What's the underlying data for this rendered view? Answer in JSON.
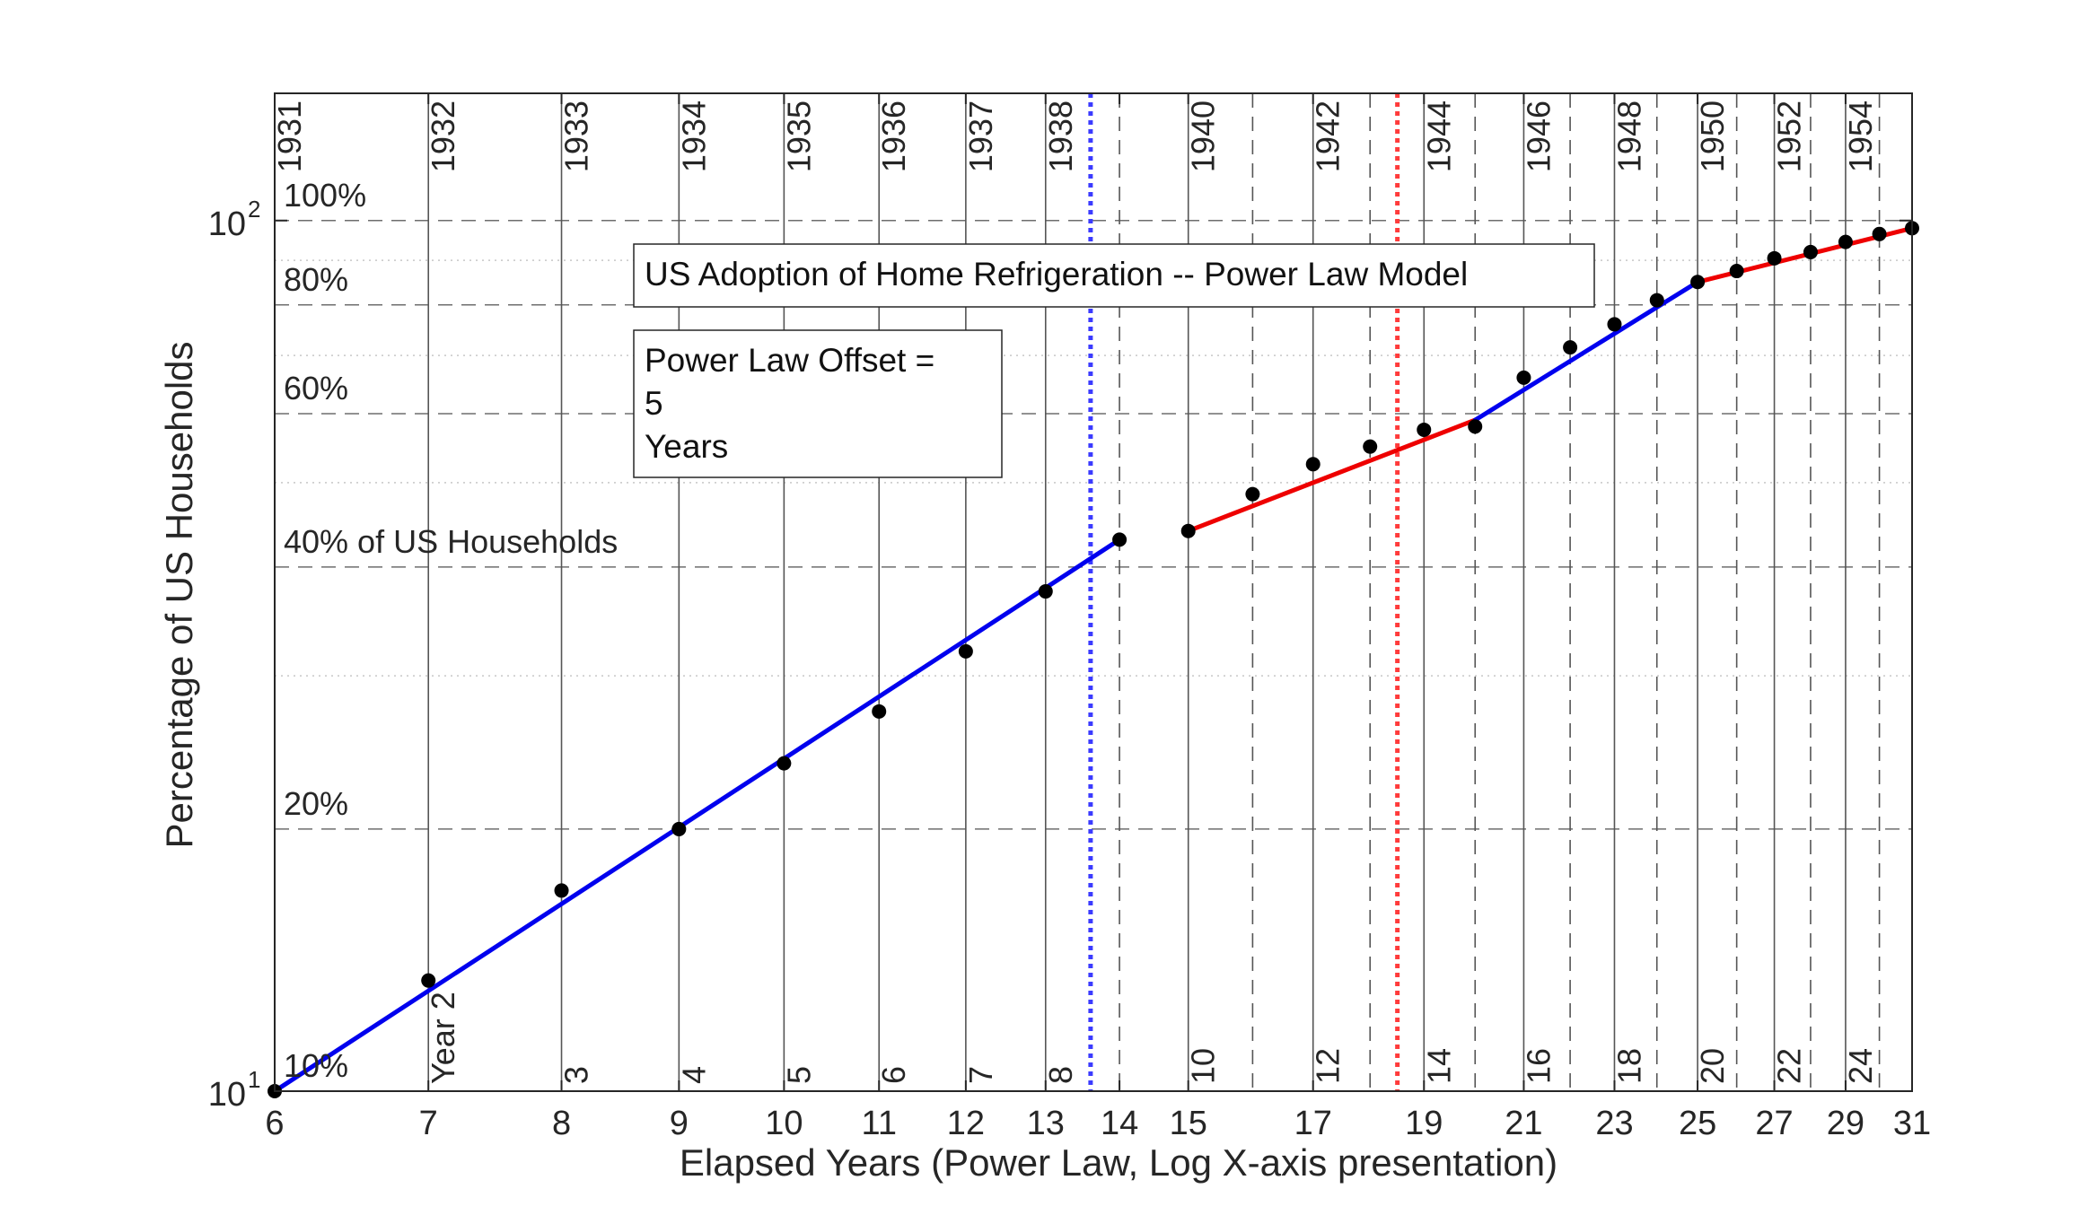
{
  "chart_data": {
    "type": "line",
    "title": "US Adoption of Home Refrigeration -- Power Law Model",
    "xlabel": "Elapsed Years (Power Law, Log X-axis presentation)",
    "ylabel": "Percentage of US Households",
    "x_scale": "log",
    "y_scale": "log",
    "xlim": [
      6,
      31
    ],
    "ylim": [
      10,
      140
    ],
    "x_ticks": [
      6,
      7,
      8,
      9,
      10,
      11,
      12,
      13,
      14,
      15,
      17,
      19,
      21,
      23,
      25,
      27,
      29,
      31
    ],
    "y_ticks": [
      {
        "value": 10,
        "base": "10",
        "exp": "1"
      },
      {
        "value": 100,
        "base": "10",
        "exp": "2"
      }
    ],
    "top_labels": [
      {
        "x": 6,
        "label": "1931"
      },
      {
        "x": 7,
        "label": "1932"
      },
      {
        "x": 8,
        "label": "1933"
      },
      {
        "x": 9,
        "label": "1934"
      },
      {
        "x": 10,
        "label": "1935"
      },
      {
        "x": 11,
        "label": "1936"
      },
      {
        "x": 12,
        "label": "1937"
      },
      {
        "x": 13,
        "label": "1938"
      },
      {
        "x": 15,
        "label": "1940"
      },
      {
        "x": 17,
        "label": "1942"
      },
      {
        "x": 19,
        "label": "1944"
      },
      {
        "x": 21,
        "label": "1946"
      },
      {
        "x": 23,
        "label": "1948"
      },
      {
        "x": 25,
        "label": "1950"
      },
      {
        "x": 27,
        "label": "1952"
      },
      {
        "x": 29,
        "label": "1954"
      }
    ],
    "bottom_labels": [
      {
        "x": 7,
        "label": "Year 2"
      },
      {
        "x": 8,
        "label": "3"
      },
      {
        "x": 9,
        "label": "4"
      },
      {
        "x": 10,
        "label": "5"
      },
      {
        "x": 11,
        "label": "6"
      },
      {
        "x": 12,
        "label": "7"
      },
      {
        "x": 13,
        "label": "8"
      },
      {
        "x": 15,
        "label": "10"
      },
      {
        "x": 17,
        "label": "12"
      },
      {
        "x": 19,
        "label": "14"
      },
      {
        "x": 21,
        "label": "16"
      },
      {
        "x": 23,
        "label": "18"
      },
      {
        "x": 25,
        "label": "20"
      },
      {
        "x": 27,
        "label": "22"
      },
      {
        "x": 29,
        "label": "24"
      }
    ],
    "pct_labels": [
      {
        "y": 10,
        "label": "10%"
      },
      {
        "y": 20,
        "label": "20%"
      },
      {
        "y": 40,
        "label": "40% of US Households"
      },
      {
        "y": 60,
        "label": "60%"
      },
      {
        "y": 80,
        "label": "80%"
      },
      {
        "y": 100,
        "label": "100%"
      }
    ],
    "hlines_dashed": [
      20,
      40,
      60,
      80,
      100
    ],
    "hlines_fine": [
      30,
      50,
      70,
      90
    ],
    "vlines_solid": [
      6,
      7,
      8,
      9,
      10,
      11,
      12,
      13,
      15,
      17,
      19,
      21,
      23,
      25,
      27,
      29
    ],
    "vlines_dashed": [
      14,
      16,
      18,
      20,
      22,
      24,
      26,
      28,
      30
    ],
    "markers": [
      {
        "x": 13.6,
        "color": "#3b3bff"
      },
      {
        "x": 18.5,
        "color": "#ff3b3b"
      }
    ],
    "series": [
      {
        "name": "",
        "kind": "points",
        "color": "#000000",
        "x": [
          6,
          7,
          8,
          9,
          10,
          11,
          12,
          13,
          14,
          15,
          16,
          17,
          18,
          19,
          20,
          21,
          22,
          23,
          24,
          25,
          26,
          27,
          28,
          29,
          30,
          31
        ],
        "y": [
          10,
          13.4,
          17.0,
          20.0,
          23.8,
          27.3,
          32.0,
          37.5,
          43.0,
          44.0,
          48.5,
          52.5,
          55.0,
          57.5,
          58.0,
          66.0,
          71.5,
          76.0,
          81.0,
          85.0,
          87.5,
          90.5,
          92.0,
          94.5,
          96.5,
          98.0
        ]
      },
      {
        "name": "",
        "kind": "line",
        "color": "#0000ee",
        "x": [
          6,
          14
        ],
        "y": [
          10,
          43.0
        ]
      },
      {
        "name": "",
        "kind": "line",
        "color": "#ee0000",
        "x": [
          15,
          20
        ],
        "y": [
          44.0,
          59.0
        ]
      },
      {
        "name": "",
        "kind": "line",
        "color": "#0000ee",
        "x": [
          20,
          25
        ],
        "y": [
          59.0,
          85.0
        ]
      },
      {
        "name": "",
        "kind": "line",
        "color": "#ee0000",
        "x": [
          25,
          31
        ],
        "y": [
          85.0,
          98.0
        ]
      }
    ],
    "annotations": {
      "title_box": "US Adoption of Home Refrigeration -- Power Law Model",
      "offset_lines": [
        "Power Law Offset =",
        "5",
        "Years"
      ]
    },
    "grid": true,
    "legend": "none"
  }
}
